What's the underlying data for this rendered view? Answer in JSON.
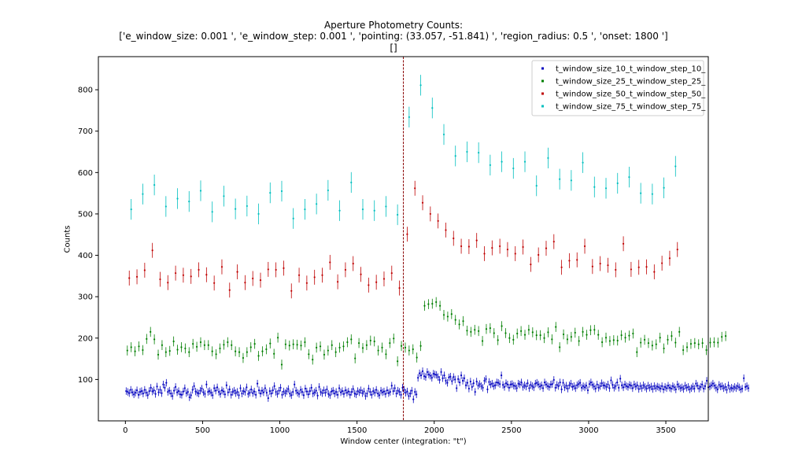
{
  "title": {
    "line1": "Aperture Photometry Counts:",
    "line2": "['e_window_size: 0.001 ', 'e_window_step: 0.001 ', 'pointing: (33.057, -51.841) ', 'region_radius: 0.5 ', 'onset: 1800 ']",
    "line3": "[]"
  },
  "chart_data": {
    "type": "scatter",
    "xlabel": "Window center (integration: \"t\")",
    "ylabel": "Counts",
    "xlim": [
      -175,
      3775
    ],
    "ylim": [
      0,
      880
    ],
    "xticks": [
      0,
      500,
      1000,
      1500,
      2000,
      2500,
      3000,
      3500
    ],
    "yticks": [
      100,
      200,
      300,
      400,
      500,
      600,
      700,
      800
    ],
    "legend_position": "upper right",
    "vline": {
      "x": 1800,
      "color": "#8b0000",
      "style": "dashed"
    },
    "series": [
      {
        "name": "t_window_size_10_t_window_step_10_",
        "color": "#0000bf",
        "err": 9,
        "x_start": 5,
        "x_step": 10,
        "values": [
          72,
          70,
          67,
          75,
          69,
          64,
          68,
          74,
          63,
          70,
          72,
          66,
          75,
          68,
          62,
          72,
          80,
          71,
          74,
          65,
          83,
          69,
          75,
          67,
          88,
          80,
          92,
          70,
          73,
          66,
          60,
          73,
          82,
          69,
          72,
          64,
          63,
          71,
          79,
          67,
          70,
          57,
          62,
          75,
          84,
          71,
          68,
          66,
          73,
          78,
          69,
          65,
          88,
          70,
          72,
          68,
          62,
          79,
          73,
          81,
          70,
          65,
          74,
          71,
          64,
          86,
          69,
          76,
          63,
          70,
          73,
          67,
          70,
          62,
          79,
          66,
          72,
          70,
          81,
          65,
          68,
          76,
          67,
          71,
          63,
          90,
          74,
          66,
          73,
          69,
          79,
          68,
          55,
          72,
          66,
          74,
          84,
          70,
          65,
          73,
          80,
          63,
          71,
          67,
          72,
          77,
          66,
          62,
          70,
          88,
          73,
          68,
          65,
          75,
          70,
          62,
          78,
          71,
          64,
          72,
          80,
          66,
          69,
          73,
          61,
          82,
          70,
          67,
          74,
          68,
          76,
          65,
          62,
          71,
          73,
          66,
          70,
          63,
          79,
          69,
          72,
          65,
          74,
          68,
          71,
          63,
          70,
          77,
          66,
          64,
          72,
          69,
          74,
          67,
          71,
          60,
          66,
          78,
          70,
          63,
          72,
          68,
          75,
          66,
          62,
          73,
          69,
          71,
          65,
          74,
          67,
          70,
          85,
          72,
          79,
          66,
          73,
          70,
          63,
          80,
          75,
          68,
          71,
          60,
          66,
          73,
          52,
          70,
          64,
          104,
          115,
          110,
          120,
          108,
          106,
          118,
          112,
          109,
          104,
          114,
          112,
          111,
          106,
          99,
          118,
          103,
          110,
          97,
          92,
          105,
          107,
          96,
          106,
          100,
          79,
          101,
          93,
          110,
          97,
          103,
          86,
          92,
          78,
          95,
          82,
          91,
          70,
          95,
          85,
          89,
          84,
          80,
          97,
          101,
          76,
          94,
          88,
          90,
          84,
          86,
          93,
          92,
          89,
          110,
          87,
          82,
          91,
          88,
          80,
          88,
          89,
          85,
          84,
          79,
          90,
          88,
          93,
          82,
          86,
          83,
          91,
          79,
          87,
          84,
          81,
          90,
          92,
          88,
          83,
          86,
          79,
          93,
          88,
          84,
          82,
          88,
          89,
          99,
          80,
          87,
          84,
          93,
          76,
          92,
          81,
          85,
          78,
          86,
          90,
          82,
          84,
          79,
          86,
          89,
          92,
          80,
          84,
          81,
          85,
          74,
          89,
          93,
          87,
          83,
          78,
          88,
          80,
          84,
          91,
          86,
          85,
          82,
          88,
          79,
          98,
          87,
          80,
          84,
          93,
          80,
          102,
          86,
          81,
          88,
          84,
          82,
          87,
          85,
          79,
          88,
          83,
          86,
          77,
          84,
          79,
          86,
          82,
          78,
          85,
          80,
          83,
          77,
          84,
          79,
          83,
          81,
          78,
          84,
          76,
          82,
          79,
          85,
          80,
          78,
          84,
          81,
          76,
          88,
          83,
          79,
          81,
          77,
          85,
          80,
          82,
          76,
          79,
          83,
          78,
          90,
          85,
          78,
          82,
          88,
          78,
          84,
          97,
          81,
          83,
          86,
          90,
          85,
          80,
          76,
          87,
          83,
          84,
          79,
          82,
          75,
          86,
          77,
          80,
          78,
          82,
          79,
          84,
          81,
          76,
          78,
          103,
          82,
          84,
          79
        ]
      },
      {
        "name": "t_window_size_25_t_window_step_25_",
        "color": "#007f00",
        "err": 12,
        "x_start": 12.5,
        "x_step": 25,
        "values": [
          170,
          178,
          168,
          180,
          171,
          198,
          215,
          197,
          160,
          183,
          166,
          169,
          192,
          172,
          178,
          175,
          166,
          186,
          179,
          190,
          183,
          183,
          168,
          161,
          175,
          184,
          190,
          183,
          168,
          166,
          152,
          166,
          178,
          186,
          157,
          168,
          173,
          187,
          162,
          201,
          136,
          185,
          182,
          185,
          184,
          182,
          190,
          161,
          148,
          177,
          180,
          160,
          170,
          183,
          166,
          177,
          180,
          190,
          197,
          151,
          188,
          176,
          183,
          194,
          192,
          170,
          177,
          161,
          188,
          199,
          144,
          181,
          177,
          170,
          173,
          153,
          181,
          278,
          282,
          283,
          287,
          278,
          256,
          252,
          258,
          244,
          233,
          241,
          218,
          215,
          220,
          217,
          193,
          222,
          224,
          212,
          195,
          229,
          212,
          200,
          196,
          211,
          217,
          208,
          220,
          214,
          207,
          207,
          200,
          214,
          197,
          227,
          178,
          209,
          197,
          203,
          213,
          193,
          215,
          208,
          219,
          220,
          208,
          190,
          201,
          193,
          195,
          194,
          207,
          201,
          206,
          211,
          166,
          189,
          196,
          188,
          182,
          185,
          201,
          175,
          196,
          205,
          189,
          215,
          171,
          178,
          186,
          188,
          185,
          188,
          171,
          189,
          190,
          189,
          203,
          205
        ]
      },
      {
        "name": "t_window_size_50_t_window_step_50_",
        "color": "#bf0000",
        "err": 18,
        "x_start": 25,
        "x_step": 50,
        "values": [
          345,
          348,
          364,
          412,
          342,
          334,
          357,
          352,
          349,
          365,
          353,
          333,
          372,
          316,
          360,
          334,
          344,
          340,
          366,
          365,
          369,
          314,
          352,
          333,
          347,
          352,
          383,
          336,
          365,
          380,
          354,
          328,
          335,
          343,
          357,
          321,
          451,
          562,
          527,
          500,
          483,
          461,
          441,
          422,
          421,
          436,
          404,
          418,
          422,
          414,
          404,
          420,
          378,
          401,
          417,
          433,
          371,
          387,
          389,
          422,
          373,
          380,
          376,
          365,
          428,
          366,
          371,
          372,
          360,
          381,
          393,
          414
        ]
      },
      {
        "name": "t_window_size_75_t_window_step_75_",
        "color": "#00bfbf",
        "err": 25,
        "x_start": 37.5,
        "x_step": 75,
        "values": [
          511,
          548,
          570,
          518,
          537,
          530,
          556,
          505,
          543,
          512,
          519,
          500,
          551,
          555,
          489,
          511,
          524,
          557,
          508,
          576,
          511,
          508,
          518,
          498,
          734,
          811,
          756,
          692,
          640,
          650,
          648,
          618,
          626,
          610,
          626,
          568,
          635,
          584,
          581,
          624,
          565,
          562,
          574,
          589,
          550,
          548,
          563,
          615
        ]
      }
    ]
  }
}
